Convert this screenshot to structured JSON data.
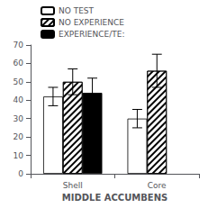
{
  "chart_data": {
    "type": "bar",
    "xlabel": "MIDDLE ACCUMBENS",
    "categories": [
      "Shell",
      "Core"
    ],
    "series": [
      {
        "name": "NO TEST",
        "color": "white",
        "values": [
          42,
          30
        ],
        "errors": [
          5,
          5
        ]
      },
      {
        "name": "NO EXPERIENCE",
        "color": "white",
        "values": [
          50,
          56
        ],
        "errors": [
          7,
          9
        ]
      },
      {
        "name": "EXPERIENCE/TE:",
        "color": "black",
        "values": [
          44,
          null
        ],
        "errors": [
          8,
          null
        ]
      }
    ],
    "ylim": [
      0,
      70
    ],
    "yticks": [
      0,
      10,
      20,
      30,
      40,
      50,
      60,
      70
    ],
    "grid": false,
    "legend": "upper left"
  }
}
